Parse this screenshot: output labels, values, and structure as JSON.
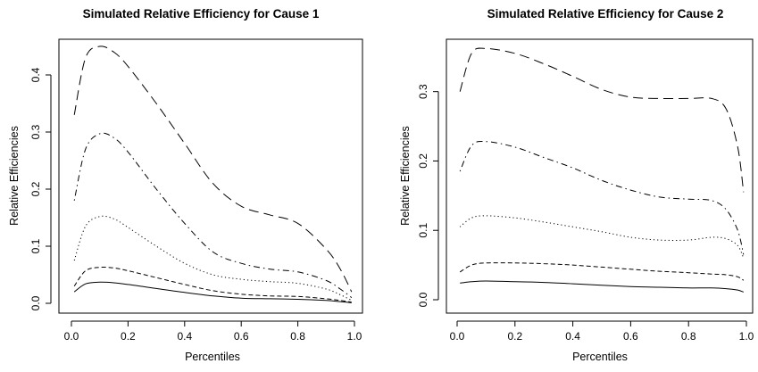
{
  "chart_data": [
    {
      "type": "line",
      "title": "Simulated Relative Efficiency for Cause 1",
      "xlabel": "Percentiles",
      "ylabel": "Relative Efficiencies",
      "xlim": [
        0,
        1
      ],
      "ylim": [
        0,
        0.45
      ],
      "xticks": [
        "0.0",
        "0.2",
        "0.4",
        "0.6",
        "0.8",
        "1.0"
      ],
      "yticks": [
        "0.0",
        "0.1",
        "0.2",
        "0.3",
        "0.4"
      ],
      "grid": false,
      "legend": "none",
      "x": [
        0.01,
        0.05,
        0.1,
        0.15,
        0.2,
        0.3,
        0.4,
        0.5,
        0.6,
        0.7,
        0.8,
        0.9,
        0.95,
        0.99
      ],
      "series": [
        {
          "linestyle": "longdash",
          "values": [
            0.33,
            0.43,
            0.45,
            0.44,
            0.415,
            0.35,
            0.28,
            0.21,
            0.17,
            0.155,
            0.14,
            0.095,
            0.06,
            0.02
          ]
        },
        {
          "linestyle": "dotdash",
          "values": [
            0.18,
            0.27,
            0.297,
            0.29,
            0.265,
            0.2,
            0.14,
            0.09,
            0.07,
            0.06,
            0.055,
            0.04,
            0.025,
            0.01
          ]
        },
        {
          "linestyle": "dotted",
          "values": [
            0.075,
            0.135,
            0.152,
            0.148,
            0.133,
            0.1,
            0.07,
            0.05,
            0.042,
            0.038,
            0.035,
            0.025,
            0.015,
            0.005
          ]
        },
        {
          "linestyle": "dashed",
          "values": [
            0.03,
            0.057,
            0.063,
            0.062,
            0.057,
            0.045,
            0.033,
            0.022,
            0.016,
            0.013,
            0.012,
            0.008,
            0.005,
            0.002
          ]
        },
        {
          "linestyle": "solid",
          "values": [
            0.02,
            0.034,
            0.037,
            0.036,
            0.033,
            0.026,
            0.019,
            0.013,
            0.009,
            0.008,
            0.007,
            0.005,
            0.003,
            0.001
          ]
        }
      ]
    },
    {
      "type": "line",
      "title": "Simulated Relative Efficiency for Cause 2",
      "xlabel": "Percentiles",
      "ylabel": "Relative Efficiencies",
      "xlim": [
        0,
        1
      ],
      "ylim": [
        0,
        0.36
      ],
      "xticks": [
        "0.0",
        "0.2",
        "0.4",
        "0.6",
        "0.8",
        "1.0"
      ],
      "yticks": [
        "0.0",
        "0.1",
        "0.2",
        "0.3"
      ],
      "grid": false,
      "legend": "none",
      "x": [
        0.01,
        0.05,
        0.1,
        0.2,
        0.3,
        0.4,
        0.5,
        0.6,
        0.7,
        0.8,
        0.88,
        0.93,
        0.97,
        0.99
      ],
      "series": [
        {
          "linestyle": "longdash",
          "values": [
            0.3,
            0.355,
            0.362,
            0.355,
            0.34,
            0.322,
            0.303,
            0.292,
            0.29,
            0.29,
            0.29,
            0.275,
            0.22,
            0.155
          ]
        },
        {
          "linestyle": "dotdash",
          "values": [
            0.185,
            0.222,
            0.228,
            0.22,
            0.205,
            0.19,
            0.172,
            0.158,
            0.148,
            0.145,
            0.143,
            0.13,
            0.1,
            0.065
          ]
        },
        {
          "linestyle": "dotted",
          "values": [
            0.105,
            0.118,
            0.121,
            0.118,
            0.112,
            0.105,
            0.098,
            0.09,
            0.086,
            0.086,
            0.09,
            0.088,
            0.078,
            0.06
          ]
        },
        {
          "linestyle": "dashed",
          "values": [
            0.04,
            0.05,
            0.053,
            0.053,
            0.052,
            0.05,
            0.047,
            0.044,
            0.041,
            0.039,
            0.037,
            0.036,
            0.033,
            0.028
          ]
        },
        {
          "linestyle": "solid",
          "values": [
            0.024,
            0.026,
            0.027,
            0.026,
            0.025,
            0.023,
            0.021,
            0.019,
            0.018,
            0.017,
            0.017,
            0.016,
            0.014,
            0.011
          ]
        }
      ]
    }
  ]
}
